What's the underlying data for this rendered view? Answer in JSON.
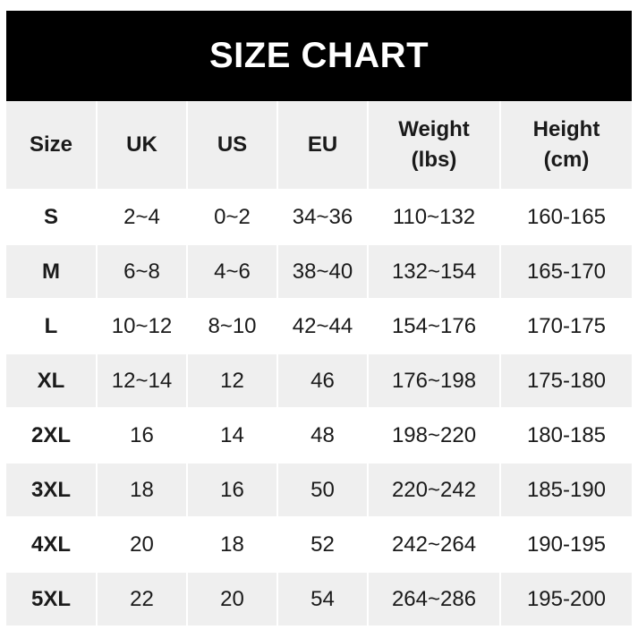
{
  "title": "SIZE CHART",
  "columns": [
    "Size",
    "UK",
    "US",
    "EU",
    "Weight\n(lbs)",
    "Height\n(cm)"
  ],
  "rows": [
    [
      "S",
      "2~4",
      "0~2",
      "34~36",
      "110~132",
      "160-165"
    ],
    [
      "M",
      "6~8",
      "4~6",
      "38~40",
      "132~154",
      "165-170"
    ],
    [
      "L",
      "10~12",
      "8~10",
      "42~44",
      "154~176",
      "170-175"
    ],
    [
      "XL",
      "12~14",
      "12",
      "46",
      "176~198",
      "175-180"
    ],
    [
      "2XL",
      "16",
      "14",
      "48",
      "198~220",
      "180-185"
    ],
    [
      "3XL",
      "18",
      "16",
      "50",
      "220~242",
      "185-190"
    ],
    [
      "4XL",
      "20",
      "18",
      "52",
      "242~264",
      "190-195"
    ],
    [
      "5XL",
      "22",
      "20",
      "54",
      "264~286",
      "195-200"
    ]
  ]
}
